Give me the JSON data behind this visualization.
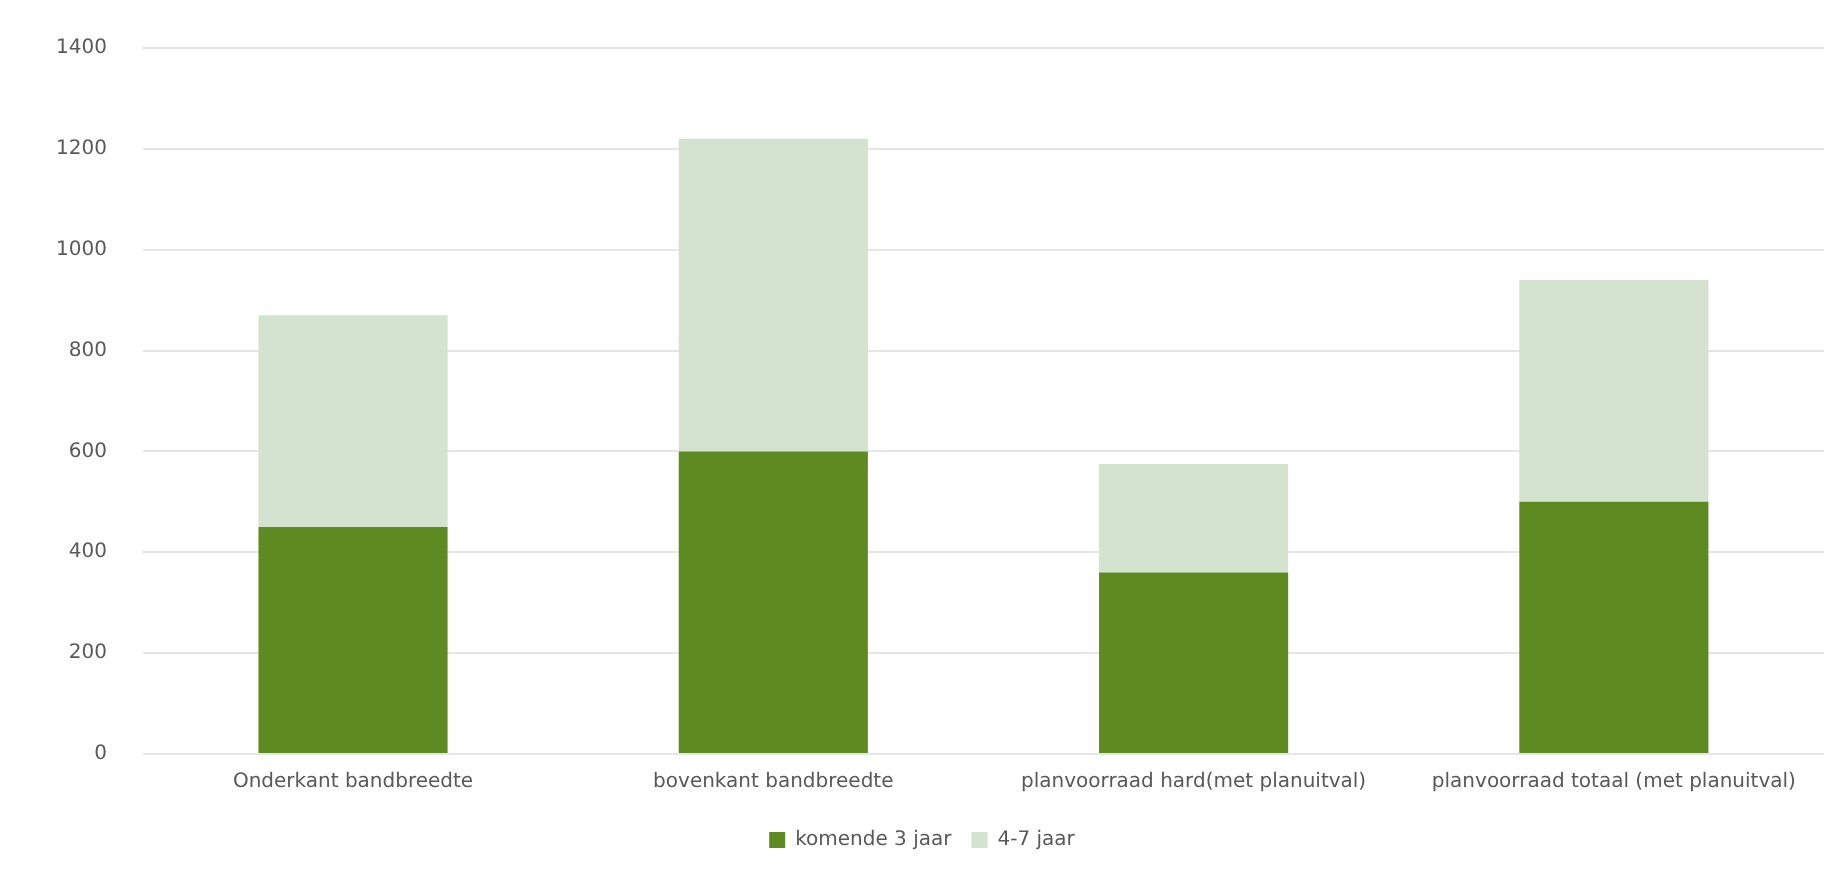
{
  "chart_data": {
    "type": "bar",
    "stacked": true,
    "categories": [
      "Onderkant bandbreedte",
      "bovenkant bandbreedte",
      "planvoorraad hard(met planuitval)",
      "planvoorraad totaal (met planuitval)"
    ],
    "series": [
      {
        "name": "komende 3 jaar",
        "color": "#5e8a22",
        "values": [
          450,
          600,
          360,
          500
        ]
      },
      {
        "name": "4-7 jaar",
        "color": "#d3e3d0",
        "values": [
          420,
          620,
          215,
          440
        ]
      }
    ],
    "ylim": [
      0,
      1400
    ],
    "yticks": [
      0,
      200,
      400,
      600,
      800,
      1000,
      1200,
      1400
    ],
    "grid": "y",
    "legend": "bottom"
  }
}
